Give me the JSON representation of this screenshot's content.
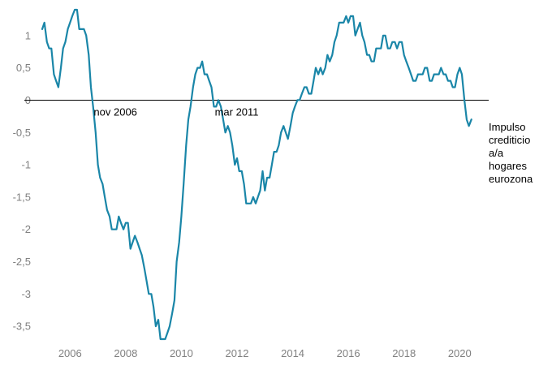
{
  "chart_data": {
    "type": "line",
    "title": "",
    "xlabel": "",
    "ylabel": "",
    "xlim": [
      2005.0,
      2020.75
    ],
    "ylim": [
      -3.75,
      1.45
    ],
    "grid": false,
    "zero_line": true,
    "x_ticks": [
      2006,
      2008,
      2010,
      2012,
      2014,
      2016,
      2018,
      2020
    ],
    "x_tick_labels": [
      "2006",
      "2008",
      "2010",
      "2012",
      "2014",
      "2016",
      "2018",
      "2020"
    ],
    "y_ticks": [
      1,
      0.5,
      0,
      -0.5,
      -1,
      -1.5,
      -2,
      -2.5,
      -3,
      -3.5
    ],
    "y_tick_labels": [
      "1",
      "0,5",
      "0",
      "-0,5",
      "-1",
      "-1,5",
      "-2",
      "-2,5",
      "-3",
      "-3,5"
    ],
    "annotations": [
      {
        "text": "nov 2006",
        "x": 2006.85,
        "y": -0.18
      },
      {
        "text": "mar 2011",
        "x": 2011.2,
        "y": -0.18
      }
    ],
    "series": [
      {
        "name": "Impulso crediticio a/a hogares eurozona",
        "name_lines": [
          "Impulso",
          "crediticio",
          "a/a",
          "hogares",
          "eurozona"
        ],
        "color": "#1a86a8",
        "points": [
          [
            2005.0,
            1.1
          ],
          [
            2005.08,
            1.2
          ],
          [
            2005.17,
            0.9
          ],
          [
            2005.25,
            0.8
          ],
          [
            2005.33,
            0.8
          ],
          [
            2005.42,
            0.4
          ],
          [
            2005.5,
            0.3
          ],
          [
            2005.58,
            0.2
          ],
          [
            2005.67,
            0.5
          ],
          [
            2005.75,
            0.8
          ],
          [
            2005.83,
            0.9
          ],
          [
            2005.92,
            1.1
          ],
          [
            2006.0,
            1.2
          ],
          [
            2006.08,
            1.3
          ],
          [
            2006.17,
            1.4
          ],
          [
            2006.25,
            1.4
          ],
          [
            2006.33,
            1.1
          ],
          [
            2006.42,
            1.1
          ],
          [
            2006.5,
            1.1
          ],
          [
            2006.58,
            1.0
          ],
          [
            2006.67,
            0.7
          ],
          [
            2006.75,
            0.2
          ],
          [
            2006.83,
            -0.1
          ],
          [
            2006.92,
            -0.5
          ],
          [
            2007.0,
            -1.0
          ],
          [
            2007.08,
            -1.2
          ],
          [
            2007.17,
            -1.3
          ],
          [
            2007.25,
            -1.5
          ],
          [
            2007.33,
            -1.7
          ],
          [
            2007.42,
            -1.8
          ],
          [
            2007.5,
            -2.0
          ],
          [
            2007.58,
            -2.0
          ],
          [
            2007.67,
            -2.0
          ],
          [
            2007.75,
            -1.8
          ],
          [
            2007.83,
            -1.9
          ],
          [
            2007.92,
            -2.0
          ],
          [
            2008.0,
            -1.9
          ],
          [
            2008.08,
            -1.9
          ],
          [
            2008.17,
            -2.3
          ],
          [
            2008.25,
            -2.2
          ],
          [
            2008.33,
            -2.1
          ],
          [
            2008.42,
            -2.2
          ],
          [
            2008.5,
            -2.3
          ],
          [
            2008.58,
            -2.4
          ],
          [
            2008.67,
            -2.6
          ],
          [
            2008.75,
            -2.8
          ],
          [
            2008.83,
            -3.0
          ],
          [
            2008.92,
            -3.0
          ],
          [
            2009.0,
            -3.2
          ],
          [
            2009.08,
            -3.5
          ],
          [
            2009.17,
            -3.4
          ],
          [
            2009.25,
            -3.7
          ],
          [
            2009.33,
            -3.7
          ],
          [
            2009.42,
            -3.7
          ],
          [
            2009.5,
            -3.6
          ],
          [
            2009.58,
            -3.5
          ],
          [
            2009.67,
            -3.3
          ],
          [
            2009.75,
            -3.1
          ],
          [
            2009.83,
            -2.5
          ],
          [
            2009.92,
            -2.2
          ],
          [
            2010.0,
            -1.8
          ],
          [
            2010.08,
            -1.3
          ],
          [
            2010.17,
            -0.7
          ],
          [
            2010.25,
            -0.3
          ],
          [
            2010.33,
            -0.1
          ],
          [
            2010.42,
            0.2
          ],
          [
            2010.5,
            0.4
          ],
          [
            2010.58,
            0.5
          ],
          [
            2010.67,
            0.5
          ],
          [
            2010.75,
            0.6
          ],
          [
            2010.83,
            0.4
          ],
          [
            2010.92,
            0.4
          ],
          [
            2011.0,
            0.3
          ],
          [
            2011.08,
            0.2
          ],
          [
            2011.17,
            -0.1
          ],
          [
            2011.25,
            -0.1
          ],
          [
            2011.33,
            0.0
          ],
          [
            2011.42,
            -0.1
          ],
          [
            2011.5,
            -0.3
          ],
          [
            2011.58,
            -0.5
          ],
          [
            2011.67,
            -0.4
          ],
          [
            2011.75,
            -0.5
          ],
          [
            2011.83,
            -0.7
          ],
          [
            2011.92,
            -1.0
          ],
          [
            2012.0,
            -0.9
          ],
          [
            2012.08,
            -1.1
          ],
          [
            2012.17,
            -1.1
          ],
          [
            2012.25,
            -1.3
          ],
          [
            2012.33,
            -1.6
          ],
          [
            2012.42,
            -1.6
          ],
          [
            2012.5,
            -1.6
          ],
          [
            2012.58,
            -1.5
          ],
          [
            2012.67,
            -1.6
          ],
          [
            2012.75,
            -1.5
          ],
          [
            2012.83,
            -1.4
          ],
          [
            2012.92,
            -1.1
          ],
          [
            2013.0,
            -1.4
          ],
          [
            2013.08,
            -1.2
          ],
          [
            2013.17,
            -1.2
          ],
          [
            2013.25,
            -1.0
          ],
          [
            2013.33,
            -0.8
          ],
          [
            2013.42,
            -0.8
          ],
          [
            2013.5,
            -0.7
          ],
          [
            2013.58,
            -0.5
          ],
          [
            2013.67,
            -0.4
          ],
          [
            2013.75,
            -0.5
          ],
          [
            2013.83,
            -0.6
          ],
          [
            2013.92,
            -0.4
          ],
          [
            2014.0,
            -0.2
          ],
          [
            2014.08,
            -0.1
          ],
          [
            2014.17,
            0.0
          ],
          [
            2014.25,
            0.0
          ],
          [
            2014.33,
            0.1
          ],
          [
            2014.42,
            0.2
          ],
          [
            2014.5,
            0.2
          ],
          [
            2014.58,
            0.1
          ],
          [
            2014.67,
            0.1
          ],
          [
            2014.75,
            0.3
          ],
          [
            2014.83,
            0.5
          ],
          [
            2014.92,
            0.4
          ],
          [
            2015.0,
            0.5
          ],
          [
            2015.08,
            0.4
          ],
          [
            2015.17,
            0.5
          ],
          [
            2015.25,
            0.7
          ],
          [
            2015.33,
            0.6
          ],
          [
            2015.42,
            0.7
          ],
          [
            2015.5,
            0.9
          ],
          [
            2015.58,
            1.0
          ],
          [
            2015.67,
            1.2
          ],
          [
            2015.75,
            1.2
          ],
          [
            2015.83,
            1.2
          ],
          [
            2015.92,
            1.3
          ],
          [
            2016.0,
            1.2
          ],
          [
            2016.08,
            1.3
          ],
          [
            2016.17,
            1.3
          ],
          [
            2016.25,
            1.0
          ],
          [
            2016.33,
            1.1
          ],
          [
            2016.42,
            1.2
          ],
          [
            2016.5,
            1.0
          ],
          [
            2016.58,
            0.9
          ],
          [
            2016.67,
            0.7
          ],
          [
            2016.75,
            0.7
          ],
          [
            2016.83,
            0.6
          ],
          [
            2016.92,
            0.6
          ],
          [
            2017.0,
            0.8
          ],
          [
            2017.08,
            0.8
          ],
          [
            2017.17,
            0.8
          ],
          [
            2017.25,
            1.0
          ],
          [
            2017.33,
            1.0
          ],
          [
            2017.42,
            0.8
          ],
          [
            2017.5,
            0.8
          ],
          [
            2017.58,
            0.9
          ],
          [
            2017.67,
            0.9
          ],
          [
            2017.75,
            0.8
          ],
          [
            2017.83,
            0.9
          ],
          [
            2017.92,
            0.9
          ],
          [
            2018.0,
            0.7
          ],
          [
            2018.08,
            0.6
          ],
          [
            2018.17,
            0.5
          ],
          [
            2018.25,
            0.4
          ],
          [
            2018.33,
            0.3
          ],
          [
            2018.42,
            0.3
          ],
          [
            2018.5,
            0.4
          ],
          [
            2018.58,
            0.4
          ],
          [
            2018.67,
            0.4
          ],
          [
            2018.75,
            0.5
          ],
          [
            2018.83,
            0.5
          ],
          [
            2018.92,
            0.3
          ],
          [
            2019.0,
            0.3
          ],
          [
            2019.08,
            0.4
          ],
          [
            2019.17,
            0.4
          ],
          [
            2019.25,
            0.4
          ],
          [
            2019.33,
            0.5
          ],
          [
            2019.42,
            0.4
          ],
          [
            2019.5,
            0.4
          ],
          [
            2019.58,
            0.3
          ],
          [
            2019.67,
            0.3
          ],
          [
            2019.75,
            0.2
          ],
          [
            2019.83,
            0.2
          ],
          [
            2019.92,
            0.4
          ],
          [
            2020.0,
            0.5
          ],
          [
            2020.08,
            0.4
          ],
          [
            2020.17,
            0.0
          ],
          [
            2020.25,
            -0.3
          ],
          [
            2020.33,
            -0.4
          ],
          [
            2020.42,
            -0.3
          ]
        ]
      }
    ]
  }
}
